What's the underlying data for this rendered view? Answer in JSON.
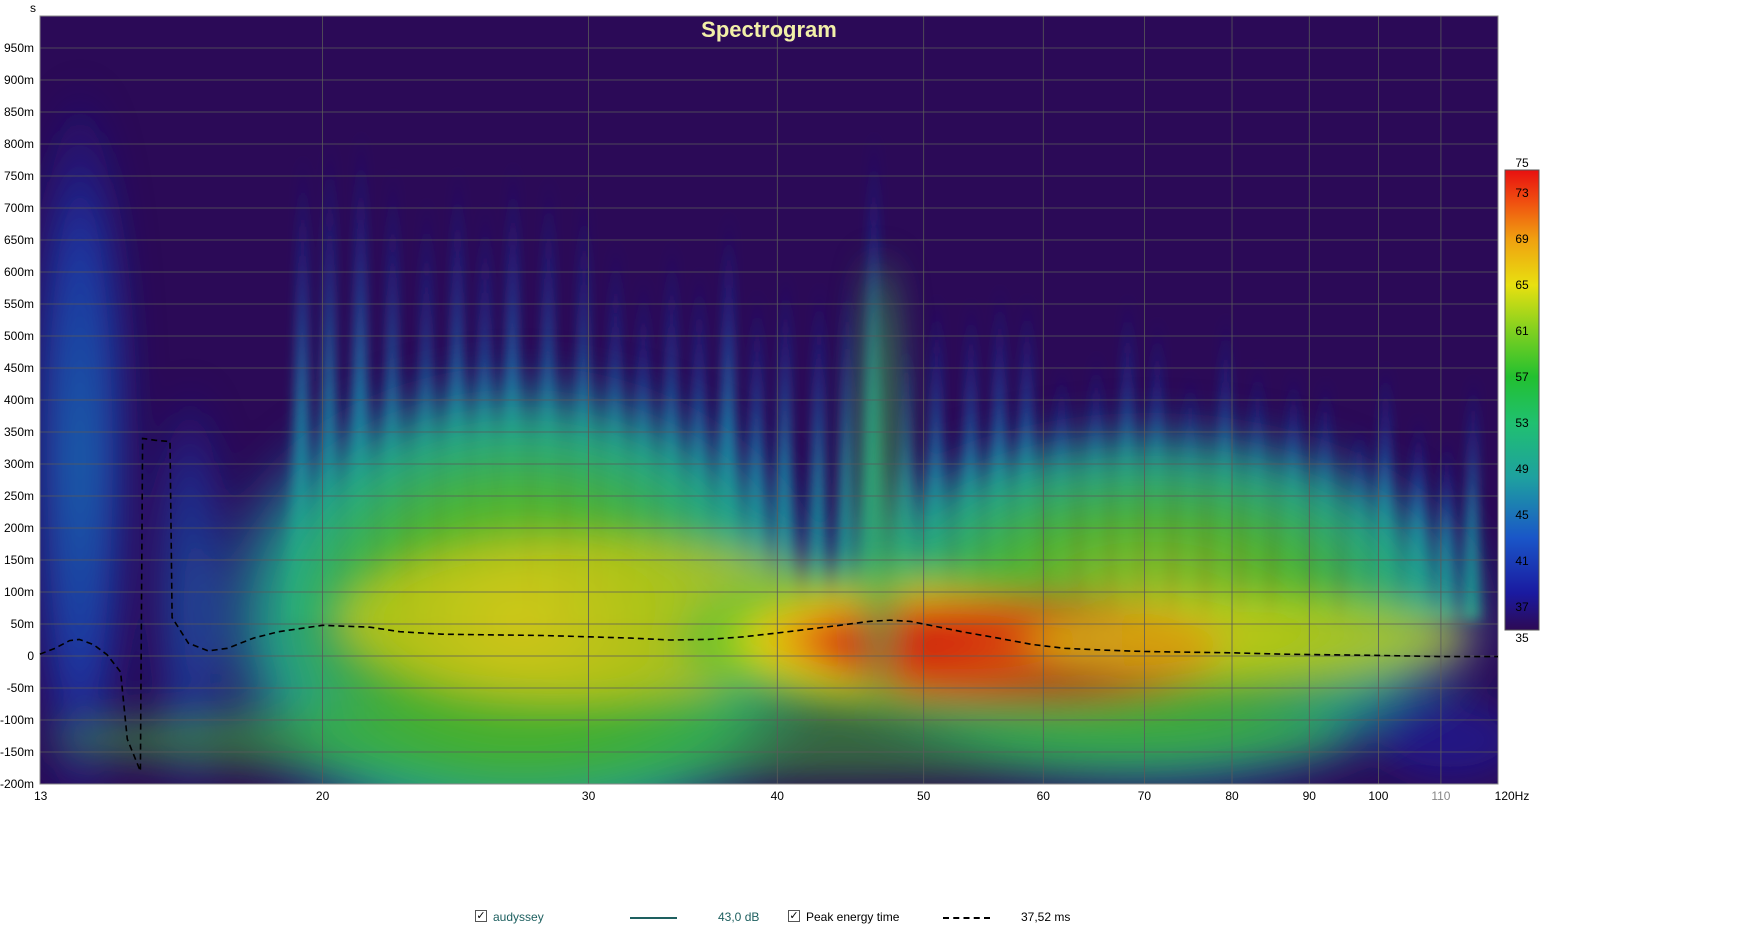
{
  "chart_data": {
    "type": "heatmap",
    "title": "Spectrogram",
    "x_unit": "Hz",
    "y_unit": "s",
    "x_scale": "log",
    "xlim": [
      13,
      120
    ],
    "ylim": [
      -0.2,
      1.0
    ],
    "x_ticks": [
      {
        "value": 13,
        "label": "13"
      },
      {
        "value": 20,
        "label": "20"
      },
      {
        "value": 30,
        "label": "30"
      },
      {
        "value": 40,
        "label": "40"
      },
      {
        "value": 50,
        "label": "50"
      },
      {
        "value": 60,
        "label": "60"
      },
      {
        "value": 70,
        "label": "70"
      },
      {
        "value": 80,
        "label": "80"
      },
      {
        "value": 90,
        "label": "90"
      },
      {
        "value": 100,
        "label": "100"
      },
      {
        "value": 110,
        "label": "110"
      },
      {
        "value": 120,
        "label": "120Hz"
      }
    ],
    "y_ticks": [
      {
        "value": 0.95,
        "label": "950m"
      },
      {
        "value": 0.9,
        "label": "900m"
      },
      {
        "value": 0.85,
        "label": "850m"
      },
      {
        "value": 0.8,
        "label": "800m"
      },
      {
        "value": 0.75,
        "label": "750m"
      },
      {
        "value": 0.7,
        "label": "700m"
      },
      {
        "value": 0.65,
        "label": "650m"
      },
      {
        "value": 0.6,
        "label": "600m"
      },
      {
        "value": 0.55,
        "label": "550m"
      },
      {
        "value": 0.5,
        "label": "500m"
      },
      {
        "value": 0.45,
        "label": "450m"
      },
      {
        "value": 0.4,
        "label": "400m"
      },
      {
        "value": 0.35,
        "label": "350m"
      },
      {
        "value": 0.3,
        "label": "300m"
      },
      {
        "value": 0.25,
        "label": "250m"
      },
      {
        "value": 0.2,
        "label": "200m"
      },
      {
        "value": 0.15,
        "label": "150m"
      },
      {
        "value": 0.1,
        "label": "100m"
      },
      {
        "value": 0.05,
        "label": "50m"
      },
      {
        "value": 0.0,
        "label": "0"
      },
      {
        "value": -0.05,
        "label": "-50m"
      },
      {
        "value": -0.1,
        "label": "-100m"
      },
      {
        "value": -0.15,
        "label": "-150m"
      },
      {
        "value": -0.2,
        "label": "-200m"
      }
    ],
    "colorbar": {
      "range": [
        35,
        75
      ],
      "ticks": [
        75,
        73,
        69,
        65,
        61,
        57,
        53,
        49,
        45,
        41,
        37,
        35
      ],
      "colors": [
        "#2d0a55",
        "#1a1aa0",
        "#1a56c8",
        "#1ea0a0",
        "#20c070",
        "#22c030",
        "#80d020",
        "#e8e010",
        "#f0a010",
        "#f05010",
        "#e81010"
      ]
    },
    "plot_background": "#2b0a57",
    "grid": true,
    "series": [
      {
        "name": "Peak energy time",
        "style": "dashed",
        "color": "#000000",
        "points": [
          [
            13,
            0.003
          ],
          [
            13.3,
            0.012
          ],
          [
            13.6,
            0.024
          ],
          [
            13.8,
            0.026
          ],
          [
            14.1,
            0.018
          ],
          [
            14.4,
            0.002
          ],
          [
            14.7,
            -0.025
          ],
          [
            14.85,
            -0.13
          ],
          [
            15.15,
            -0.18
          ],
          [
            15.2,
            0.34
          ],
          [
            15.5,
            0.337
          ],
          [
            15.85,
            0.335
          ],
          [
            15.9,
            0.06
          ],
          [
            16.3,
            0.02
          ],
          [
            16.8,
            0.008
          ],
          [
            17.3,
            0.012
          ],
          [
            18.0,
            0.028
          ],
          [
            18.7,
            0.038
          ],
          [
            20.0,
            0.048
          ],
          [
            21.5,
            0.045
          ],
          [
            22.5,
            0.038
          ],
          [
            24.0,
            0.034
          ],
          [
            26.0,
            0.033
          ],
          [
            28.0,
            0.032
          ],
          [
            30.0,
            0.03
          ],
          [
            32.0,
            0.028
          ],
          [
            34.0,
            0.025
          ],
          [
            36.0,
            0.026
          ],
          [
            38.0,
            0.03
          ],
          [
            40.0,
            0.036
          ],
          [
            42.0,
            0.042
          ],
          [
            44.0,
            0.048
          ],
          [
            46.0,
            0.054
          ],
          [
            47.5,
            0.056
          ],
          [
            49.0,
            0.054
          ],
          [
            51.0,
            0.046
          ],
          [
            53.0,
            0.038
          ],
          [
            56.0,
            0.028
          ],
          [
            59.0,
            0.018
          ],
          [
            62.0,
            0.012
          ],
          [
            66.0,
            0.009
          ],
          [
            70.0,
            0.007
          ],
          [
            75.0,
            0.006
          ],
          [
            80.0,
            0.005
          ],
          [
            86.0,
            0.003
          ],
          [
            92.0,
            0.002
          ],
          [
            100.0,
            0.001
          ],
          [
            110.0,
            -0.001
          ],
          [
            120.0,
            -0.001
          ]
        ]
      }
    ],
    "legend": {
      "items": [
        {
          "checked": true,
          "label": "audyssey",
          "color": "#1e6060",
          "value": "43,0 dB",
          "line_style": "solid"
        },
        {
          "checked": true,
          "label": "Peak energy time",
          "color": "#000000",
          "value": "37,52 ms",
          "line_style": "dashed"
        }
      ]
    }
  }
}
